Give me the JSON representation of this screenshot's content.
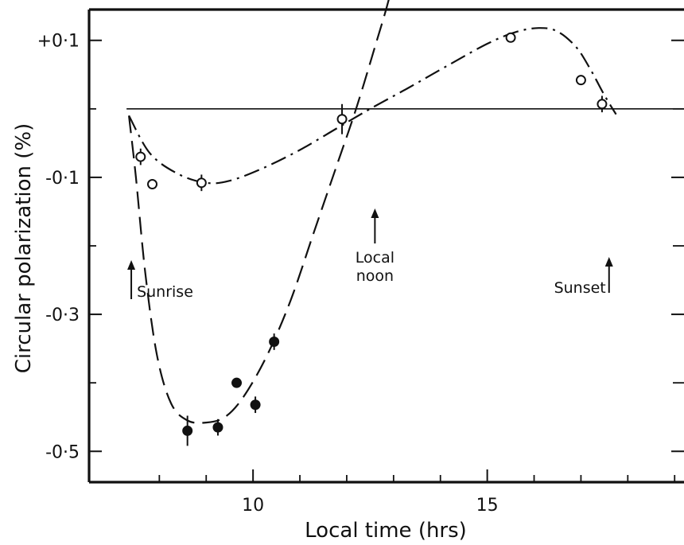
{
  "chart_data": {
    "type": "scatter",
    "title": "",
    "xlabel": "Local time (hrs)",
    "ylabel": "Circular polarization (%)",
    "xlim": [
      6.5,
      19.2
    ],
    "ylim": [
      -0.545,
      0.145
    ],
    "x_ticks": [
      {
        "value": 10,
        "label": "10"
      },
      {
        "value": 15,
        "label": "15"
      }
    ],
    "x_minor_ticks": [
      8,
      9,
      11,
      12,
      13,
      14,
      16,
      17,
      18,
      19
    ],
    "y_ticks": [
      {
        "value": 0.1,
        "label": "+0·1"
      },
      {
        "value": -0.1,
        "label": "-0·1"
      },
      {
        "value": -0.3,
        "label": "-0·3"
      },
      {
        "value": -0.5,
        "label": "-0·5"
      }
    ],
    "y_minor_ticks": [
      0.0,
      -0.2,
      -0.4
    ],
    "zero_line": 0,
    "series": [
      {
        "style": "open-circles",
        "x": [
          7.6,
          7.85,
          8.9,
          11.9,
          15.5,
          17.0,
          17.45
        ],
        "y": [
          -0.07,
          -0.11,
          -0.108,
          -0.015,
          0.104,
          0.042,
          0.007
        ],
        "err": [
          0.012,
          0.0,
          0.012,
          0.022,
          0.0,
          0.0,
          0.012
        ]
      },
      {
        "style": "filled-circles",
        "x": [
          8.6,
          9.25,
          9.65,
          10.05,
          10.45
        ],
        "y": [
          -0.47,
          -0.465,
          -0.4,
          -0.432,
          -0.34
        ],
        "err": [
          0.022,
          0.012,
          0.0,
          0.012,
          0.012
        ]
      }
    ],
    "curves": [
      {
        "style": "dash-dot",
        "x": [
          7.35,
          7.8,
          8.4,
          9.0,
          9.5,
          10.2,
          11.0,
          11.8,
          12.5,
          13.3,
          14.2,
          15.0,
          15.6,
          16.1,
          16.5,
          16.9,
          17.2,
          17.5,
          17.75
        ],
        "y": [
          -0.01,
          -0.065,
          -0.095,
          -0.108,
          -0.105,
          -0.087,
          -0.06,
          -0.028,
          0.0,
          0.03,
          0.065,
          0.095,
          0.112,
          0.118,
          0.113,
          0.09,
          0.058,
          0.02,
          -0.008
        ]
      },
      {
        "style": "dashed",
        "x": [
          7.35,
          7.5,
          7.7,
          7.95,
          8.25,
          8.6,
          9.0,
          9.4,
          9.8,
          10.3,
          10.8,
          11.3,
          11.8,
          12.2,
          12.6,
          12.9,
          13.15
        ],
        "y": [
          -0.01,
          -0.1,
          -0.24,
          -0.36,
          -0.43,
          -0.455,
          -0.458,
          -0.45,
          -0.42,
          -0.36,
          -0.28,
          -0.18,
          -0.08,
          0.0,
          0.09,
          0.16,
          0.235
        ]
      }
    ],
    "annotations": [
      {
        "text": "Sunrise",
        "x": 7.35
      },
      {
        "text": "Local",
        "line2": "noon",
        "x": 12.5
      },
      {
        "text": "Sunset",
        "x": 17.6
      }
    ]
  }
}
